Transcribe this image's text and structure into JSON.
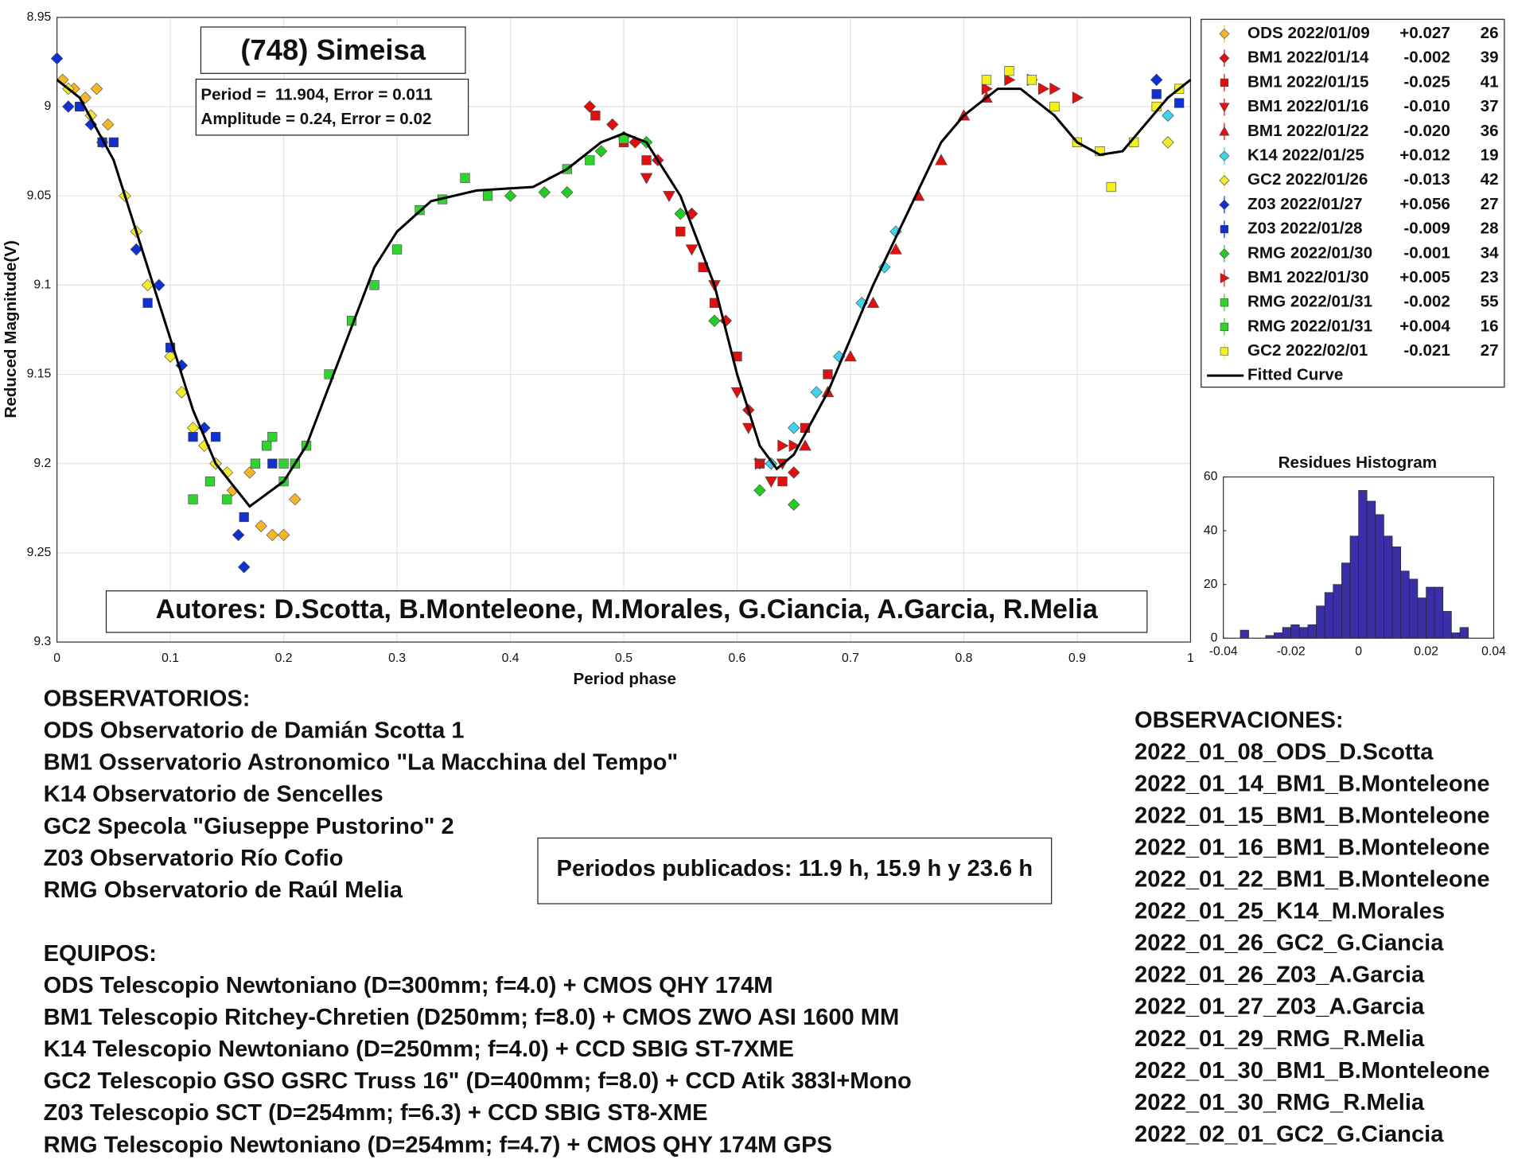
{
  "chart_data": [
    {
      "type": "scatter",
      "title": "(748) Simeisa",
      "annotations": [
        "Period =  11.904, Error = 0.011",
        "Amplitude = 0.24, Error = 0.02",
        "Autores: D.Scotta, B.Monteleone, M.Morales, G.Ciancia, A.Garcia, R.Melia"
      ],
      "xlabel": "Period phase",
      "ylabel": "Reduced Magnitude(V)",
      "xlim": [
        0,
        1
      ],
      "ylim": [
        9.3,
        8.95
      ],
      "xticks": [
        0,
        0.1,
        0.2,
        0.3,
        0.4,
        0.5,
        0.6,
        0.7,
        0.8,
        0.9,
        1
      ],
      "yticks": [
        8.95,
        9,
        9.05,
        9.1,
        9.15,
        9.2,
        9.25,
        9.3
      ],
      "grid": true,
      "series": [
        {
          "name": "ODS 2022/01/09",
          "offset": "+0.027",
          "count": 26,
          "color": "#f5b62a",
          "marker": "diamond",
          "x": [
            0.005,
            0.015,
            0.025,
            0.035,
            0.045,
            0.14,
            0.155,
            0.17,
            0.18,
            0.19,
            0.2,
            0.21
          ],
          "values": [
            8.985,
            8.99,
            8.995,
            8.99,
            9.01,
            9.2,
            9.215,
            9.205,
            9.235,
            9.24,
            9.24,
            9.22
          ]
        },
        {
          "name": "BM1 2022/01/14",
          "offset": "-0.002",
          "count": 39,
          "color": "#e01010",
          "marker": "diamond",
          "x": [
            0.47,
            0.49,
            0.51,
            0.53,
            0.56,
            0.59,
            0.61,
            0.63,
            0.65
          ],
          "values": [
            9.0,
            9.01,
            9.02,
            9.03,
            9.06,
            9.12,
            9.17,
            9.2,
            9.205
          ]
        },
        {
          "name": "BM1 2022/01/15",
          "offset": "-0.025",
          "count": 41,
          "color": "#e01010",
          "marker": "square",
          "x": [
            0.475,
            0.5,
            0.52,
            0.55,
            0.57,
            0.58,
            0.6,
            0.62,
            0.64,
            0.66,
            0.68
          ],
          "values": [
            9.005,
            9.02,
            9.03,
            9.07,
            9.09,
            9.11,
            9.14,
            9.2,
            9.21,
            9.18,
            9.15
          ]
        },
        {
          "name": "BM1 2022/01/16",
          "offset": "-0.010",
          "count": 37,
          "color": "#e01010",
          "marker": "triangle-down",
          "x": [
            0.52,
            0.54,
            0.56,
            0.58,
            0.6,
            0.61,
            0.62,
            0.63,
            0.64
          ],
          "values": [
            9.04,
            9.05,
            9.08,
            9.1,
            9.16,
            9.18,
            9.2,
            9.21,
            9.2
          ]
        },
        {
          "name": "BM1 2022/01/22",
          "offset": "-0.020",
          "count": 36,
          "color": "#e01010",
          "marker": "triangle-up",
          "x": [
            0.66,
            0.68,
            0.7,
            0.72,
            0.74,
            0.76,
            0.78,
            0.8,
            0.82
          ],
          "values": [
            9.19,
            9.16,
            9.14,
            9.11,
            9.08,
            9.05,
            9.03,
            9.005,
            8.995
          ]
        },
        {
          "name": "K14 2022/01/25",
          "offset": "+0.012",
          "count": 19,
          "color": "#3fd3ec",
          "marker": "diamond",
          "x": [
            0.63,
            0.65,
            0.67,
            0.69,
            0.71,
            0.73,
            0.74,
            0.98
          ],
          "values": [
            9.2,
            9.18,
            9.16,
            9.14,
            9.11,
            9.09,
            9.07,
            9.005
          ]
        },
        {
          "name": "GC2 2022/01/26",
          "offset": "-0.013",
          "count": 42,
          "color": "#f2ea2a",
          "marker": "diamond",
          "x": [
            0.01,
            0.03,
            0.04,
            0.06,
            0.07,
            0.08,
            0.1,
            0.11,
            0.12,
            0.13,
            0.14,
            0.15,
            0.98
          ],
          "values": [
            8.99,
            9.005,
            9.02,
            9.05,
            9.07,
            9.1,
            9.14,
            9.16,
            9.18,
            9.19,
            9.2,
            9.205,
            9.02
          ]
        },
        {
          "name": "Z03 2022/01/27",
          "offset": "+0.056",
          "count": 27,
          "color": "#1030d0",
          "marker": "diamond",
          "x": [
            0.0,
            0.01,
            0.03,
            0.07,
            0.09,
            0.11,
            0.13,
            0.16,
            0.165,
            0.97
          ],
          "values": [
            8.973,
            9.0,
            9.01,
            9.08,
            9.1,
            9.145,
            9.18,
            9.24,
            9.258,
            8.985
          ]
        },
        {
          "name": "Z03 2022/01/28",
          "offset": "-0.009",
          "count": 28,
          "color": "#1030d0",
          "marker": "square",
          "x": [
            0.02,
            0.04,
            0.05,
            0.08,
            0.1,
            0.12,
            0.14,
            0.165,
            0.19,
            0.97,
            0.99
          ],
          "values": [
            9.0,
            9.02,
            9.02,
            9.11,
            9.135,
            9.185,
            9.185,
            9.23,
            9.2,
            8.993,
            8.998
          ]
        },
        {
          "name": "RMG 2022/01/30",
          "offset": "-0.001",
          "count": 34,
          "color": "#22cc22",
          "marker": "diamond",
          "x": [
            0.4,
            0.43,
            0.45,
            0.48,
            0.5,
            0.52,
            0.55,
            0.58,
            0.62,
            0.65
          ],
          "values": [
            9.05,
            9.048,
            9.048,
            9.025,
            9.017,
            9.02,
            9.06,
            9.12,
            9.215,
            9.223
          ]
        },
        {
          "name": "BM1 2022/01/30",
          "offset": "+0.005",
          "count": 23,
          "color": "#e01010",
          "marker": "triangle-right",
          "x": [
            0.62,
            0.64,
            0.65,
            0.82,
            0.84,
            0.86,
            0.87,
            0.88,
            0.9
          ],
          "values": [
            9.2,
            9.19,
            9.19,
            8.99,
            8.985,
            8.985,
            8.99,
            8.99,
            8.995
          ]
        },
        {
          "name": "RMG 2022/01/31",
          "offset": "-0.002",
          "count": 55,
          "color": "#2fd42f",
          "marker": "square",
          "x": [
            0.12,
            0.135,
            0.15,
            0.2,
            0.22,
            0.24,
            0.26,
            0.28,
            0.3,
            0.32,
            0.34,
            0.36,
            0.38,
            0.45,
            0.47,
            0.5
          ],
          "values": [
            9.22,
            9.21,
            9.22,
            9.21,
            9.19,
            9.15,
            9.12,
            9.1,
            9.08,
            9.058,
            9.052,
            9.04,
            9.05,
            9.035,
            9.03,
            9.018
          ]
        },
        {
          "name": "RMG 2022/01/31",
          "offset": "+0.004",
          "count": 16,
          "color": "#2fd42f",
          "marker": "square",
          "x": [
            0.175,
            0.185,
            0.19,
            0.2,
            0.21
          ],
          "values": [
            9.2,
            9.19,
            9.185,
            9.2,
            9.2
          ]
        },
        {
          "name": "GC2 2022/02/01",
          "offset": "-0.021",
          "count": 27,
          "color": "#f2f21a",
          "marker": "square",
          "x": [
            0.82,
            0.84,
            0.86,
            0.88,
            0.9,
            0.92,
            0.93,
            0.95,
            0.97,
            0.99
          ],
          "values": [
            8.985,
            8.98,
            8.985,
            9.0,
            9.02,
            9.025,
            9.045,
            9.02,
            9.0,
            8.99
          ]
        },
        {
          "name": "Fitted Curve",
          "color": "#000000",
          "marker": "line",
          "x": [
            0,
            0.02,
            0.05,
            0.08,
            0.1,
            0.12,
            0.14,
            0.17,
            0.2,
            0.22,
            0.25,
            0.28,
            0.3,
            0.33,
            0.37,
            0.42,
            0.45,
            0.48,
            0.5,
            0.52,
            0.55,
            0.58,
            0.6,
            0.62,
            0.635,
            0.65,
            0.68,
            0.7,
            0.72,
            0.75,
            0.78,
            0.8,
            0.83,
            0.85,
            0.88,
            0.9,
            0.92,
            0.94,
            0.96,
            0.98,
            1
          ],
          "values": [
            8.985,
            8.995,
            9.03,
            9.09,
            9.13,
            9.17,
            9.2,
            9.224,
            9.21,
            9.19,
            9.14,
            9.09,
            9.07,
            9.053,
            9.047,
            9.045,
            9.035,
            9.02,
            9.015,
            9.02,
            9.05,
            9.1,
            9.15,
            9.19,
            9.203,
            9.195,
            9.16,
            9.13,
            9.1,
            9.06,
            9.02,
            9.005,
            8.99,
            8.99,
            9.005,
            9.02,
            9.027,
            9.025,
            9.01,
            8.995,
            8.985
          ]
        }
      ]
    },
    {
      "type": "histogram",
      "title": "Residues Histogram",
      "color": "#3b2fa8",
      "bins": [
        -0.035,
        -0.0325,
        -0.03,
        -0.0275,
        -0.025,
        -0.0225,
        -0.02,
        -0.0175,
        -0.015,
        -0.0125,
        -0.01,
        -0.0075,
        -0.005,
        -0.0025,
        0,
        0.0025,
        0.005,
        0.0075,
        0.01,
        0.0125,
        0.015,
        0.0175,
        0.02,
        0.0225,
        0.025,
        0.0275,
        0.03,
        0.0325
      ],
      "values": [
        3,
        0,
        0,
        1,
        2,
        4,
        5,
        4,
        5,
        12,
        17,
        20,
        28,
        38,
        55,
        51,
        46,
        38,
        34,
        25,
        22,
        15,
        19,
        19,
        10,
        2,
        4
      ],
      "xlim": [
        -0.04,
        0.04
      ],
      "xticks": [
        -0.04,
        -0.02,
        0,
        0.02,
        0.04
      ],
      "ylim": [
        0,
        60
      ],
      "yticks": [
        0,
        20,
        40,
        60
      ]
    }
  ],
  "published_periods": "Periodos publicados: 11.9 h, 15.9 h y 23.6 h",
  "observatorios": {
    "title": "OBSERVATORIOS:",
    "lines": [
      "ODS Observatorio de Damián Scotta 1",
      "BM1 Osservatorio Astronomico \"La Macchina del Tempo\"",
      "K14 Observatorio de Sencelles",
      "GC2 Specola \"Giuseppe Pustorino\" 2",
      "Z03 Observatorio Río Cofio",
      "RMG Observatorio de Raúl Melia"
    ]
  },
  "equipos": {
    "title": "EQUIPOS:",
    "lines": [
      "ODS Telescopio Newtoniano (D=300mm; f=4.0) + CMOS QHY 174M",
      "BM1 Telescopio Ritchey-Chretien (D250mm; f=8.0) + CMOS ZWO ASI 1600 MM",
      "K14 Telescopio Newtoniano (D=250mm; f=4.0) + CCD SBIG ST-7XME",
      "GC2 Telescopio GSO GSRC Truss 16\" (D=400mm; f=8.0) + CCD Atik 383l+Mono",
      "Z03 Telescopio SCT (D=254mm; f=6.3) + CCD SBIG ST8-XME",
      "RMG Telescopio Newtoniano (D=254mm; f=4.7) + CMOS QHY 174M GPS"
    ]
  },
  "observaciones": {
    "title": "OBSERVACIONES:",
    "lines": [
      "2022_01_08_ODS_D.Scotta",
      "2022_01_14_BM1_B.Monteleone",
      "2022_01_15_BM1_B.Monteleone",
      "2022_01_16_BM1_B.Monteleone",
      "2022_01_22_BM1_B.Monteleone",
      "2022_01_25_K14_M.Morales",
      "2022_01_26_GC2_G.Ciancia",
      "2022_01_26_Z03_A.Garcia",
      "2022_01_27_Z03_A.Garcia",
      "2022_01_29_RMG_R.Melia",
      "2022_01_30_BM1_B.Monteleone",
      "2022_01_30_RMG_R.Melia",
      "2022_02_01_GC2_G.Ciancia"
    ]
  }
}
